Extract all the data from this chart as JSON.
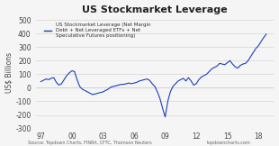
{
  "title": "US Stockmarket Leverage",
  "ylabel": "US$ Billions",
  "source_left": "Source: Topdown Charts, FINRA, CFTC, Thomson Reuters",
  "source_right": "topdowncharts.com",
  "legend_text": "US Stockmarket Leverage (Net Margin\nDebt + Net Leveraged ETFs + Net\nSpeculative Futures positioning)",
  "line_color": "#1a3fb5",
  "background_color": "#f5f5f5",
  "yticks": [
    -300,
    -200,
    -100,
    0,
    100,
    200,
    300,
    400,
    500
  ],
  "xtick_labels": [
    "97",
    "00",
    "03",
    "06",
    "09",
    "12",
    "15",
    "18"
  ],
  "ylim": [
    -300,
    520
  ],
  "data_x": [
    1997.0,
    1997.25,
    1997.5,
    1997.75,
    1998.0,
    1998.25,
    1998.5,
    1998.75,
    1999.0,
    1999.25,
    1999.5,
    1999.75,
    2000.0,
    2000.25,
    2000.5,
    2000.75,
    2001.0,
    2001.25,
    2001.5,
    2001.75,
    2002.0,
    2002.25,
    2002.5,
    2002.75,
    2003.0,
    2003.25,
    2003.5,
    2003.75,
    2004.0,
    2004.25,
    2004.5,
    2004.75,
    2005.0,
    2005.25,
    2005.5,
    2005.75,
    2006.0,
    2006.25,
    2006.5,
    2006.75,
    2007.0,
    2007.25,
    2007.5,
    2007.75,
    2008.0,
    2008.25,
    2008.5,
    2008.75,
    2009.0,
    2009.25,
    2009.5,
    2009.75,
    2010.0,
    2010.25,
    2010.5,
    2010.75,
    2011.0,
    2011.25,
    2011.5,
    2011.75,
    2012.0,
    2012.25,
    2012.5,
    2012.75,
    2013.0,
    2013.25,
    2013.5,
    2013.75,
    2014.0,
    2014.25,
    2014.5,
    2014.75,
    2015.0,
    2015.25,
    2015.5,
    2015.75,
    2016.0,
    2016.25,
    2016.5,
    2016.75,
    2017.0,
    2017.25,
    2017.5,
    2017.75,
    2018.0,
    2018.25,
    2018.5,
    2018.75
  ],
  "data_y": [
    45,
    55,
    65,
    60,
    70,
    75,
    40,
    20,
    30,
    60,
    90,
    110,
    125,
    120,
    60,
    10,
    -10,
    -20,
    -30,
    -40,
    -50,
    -45,
    -40,
    -35,
    -30,
    -20,
    -10,
    5,
    10,
    15,
    20,
    25,
    25,
    30,
    35,
    30,
    35,
    40,
    50,
    55,
    60,
    65,
    55,
    30,
    10,
    -30,
    -80,
    -150,
    -215,
    -100,
    -30,
    10,
    30,
    50,
    60,
    70,
    50,
    75,
    50,
    20,
    30,
    60,
    80,
    90,
    100,
    120,
    140,
    150,
    160,
    180,
    175,
    170,
    185,
    200,
    175,
    155,
    145,
    165,
    175,
    180,
    200,
    230,
    260,
    290,
    310,
    340,
    370,
    395
  ]
}
